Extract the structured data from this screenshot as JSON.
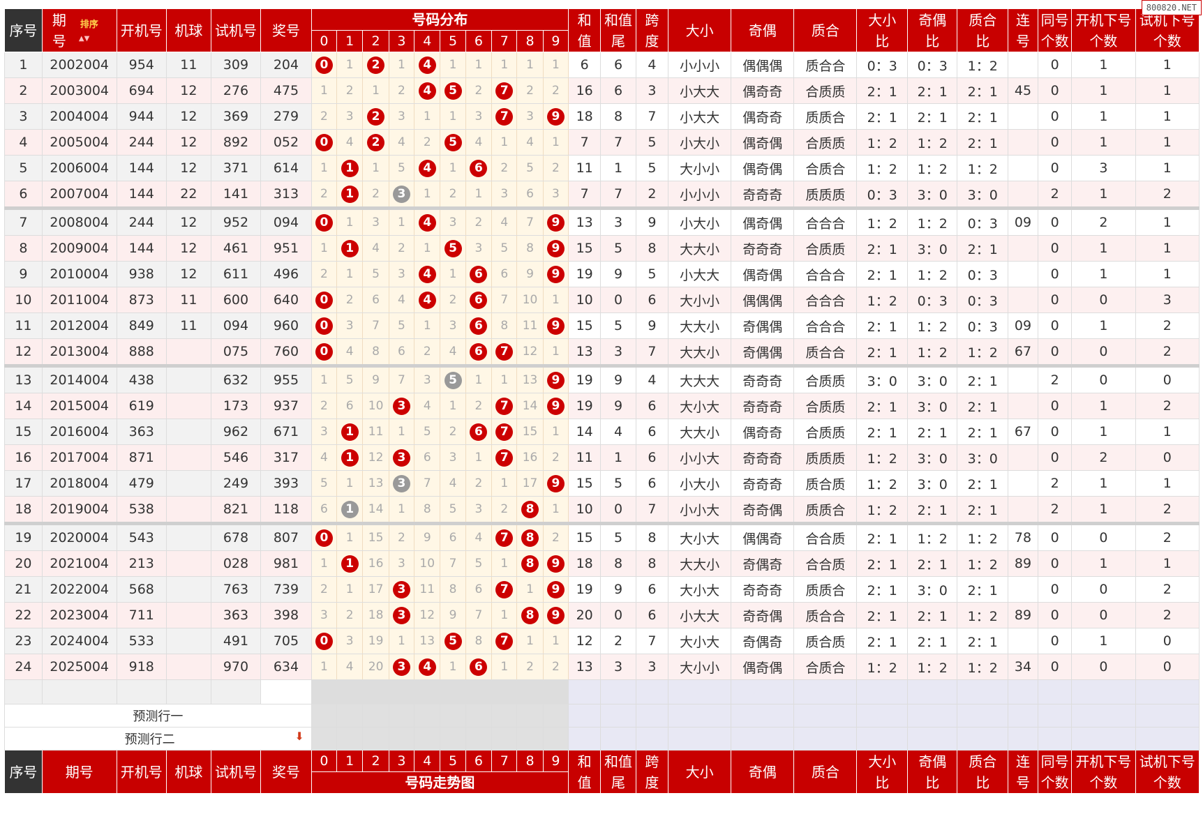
{
  "watermark": "800820.NET",
  "header": {
    "seq": "序号",
    "period_line1": "期",
    "period_line2": "号",
    "sort_label": "排序",
    "open_no": "开机号",
    "machine_ball": "机球",
    "test_no": "试机号",
    "prize_no": "奖号",
    "dist_title": "号码分布",
    "digits": [
      "0",
      "1",
      "2",
      "3",
      "4",
      "5",
      "6",
      "7",
      "8",
      "9"
    ],
    "sum_l1": "和",
    "sum_l2": "值",
    "sumtail_l1": "和值",
    "sumtail_l2": "尾",
    "span_l1": "跨",
    "span_l2": "度",
    "size": "大小",
    "parity": "奇偶",
    "prime": "质合",
    "size_ratio_l1": "大小",
    "size_ratio_l2": "比",
    "parity_ratio_l1": "奇偶",
    "parity_ratio_l2": "比",
    "prime_ratio_l1": "质合",
    "prime_ratio_l2": "比",
    "consec_l1": "连",
    "consec_l2": "号",
    "same_l1": "同号",
    "same_l2": "个数",
    "open_next_l1": "开机下号",
    "open_next_l2": "个数",
    "test_next_l1": "试机下号",
    "test_next_l2": "个数"
  },
  "footer": {
    "period": "期号",
    "trend_title": "号码走势图",
    "predict1": "预测行一",
    "predict2": "预测行二",
    "predict_arrow": "down-arrow-icon"
  },
  "rows": [
    {
      "seq": "1",
      "period": "2002004",
      "open": "954",
      "ball": "11",
      "test": "309",
      "prize": "204",
      "dist": [
        "0",
        "1",
        "2",
        "1",
        "4",
        "1",
        "1",
        "1",
        "1",
        "1"
      ],
      "sum": "6",
      "tail": "6",
      "span": "4",
      "size": "小小小",
      "parity": "偶偶偶",
      "prime": "质合合",
      "sr": "0：3",
      "pr": "0：3",
      "qr": "1：2",
      "consec": "",
      "same": "0",
      "on": "1",
      "tn": "1"
    },
    {
      "seq": "2",
      "period": "2003004",
      "open": "694",
      "ball": "12",
      "test": "276",
      "prize": "475",
      "dist": [
        "1",
        "2",
        "1",
        "2",
        "4",
        "5",
        "2",
        "7",
        "2",
        "2"
      ],
      "sum": "16",
      "tail": "6",
      "span": "3",
      "size": "小大大",
      "parity": "偶奇奇",
      "prime": "合质质",
      "sr": "2：1",
      "pr": "2：1",
      "qr": "2：1",
      "consec": "45",
      "same": "0",
      "on": "1",
      "tn": "1"
    },
    {
      "seq": "3",
      "period": "2004004",
      "open": "944",
      "ball": "12",
      "test": "369",
      "prize": "279",
      "dist": [
        "2",
        "3",
        "2",
        "3",
        "1",
        "1",
        "3",
        "7",
        "3",
        "9"
      ],
      "sum": "18",
      "tail": "8",
      "span": "7",
      "size": "小大大",
      "parity": "偶奇奇",
      "prime": "质质合",
      "sr": "2：1",
      "pr": "2：1",
      "qr": "2：1",
      "consec": "",
      "same": "0",
      "on": "1",
      "tn": "1"
    },
    {
      "seq": "4",
      "period": "2005004",
      "open": "244",
      "ball": "12",
      "test": "892",
      "prize": "052",
      "dist": [
        "0",
        "4",
        "2",
        "4",
        "2",
        "5",
        "4",
        "1",
        "4",
        "1"
      ],
      "sum": "7",
      "tail": "7",
      "span": "5",
      "size": "小大小",
      "parity": "偶奇偶",
      "prime": "合质质",
      "sr": "1：2",
      "pr": "1：2",
      "qr": "2：1",
      "consec": "",
      "same": "0",
      "on": "1",
      "tn": "1"
    },
    {
      "seq": "5",
      "period": "2006004",
      "open": "144",
      "ball": "12",
      "test": "371",
      "prize": "614",
      "dist": [
        "1",
        "1",
        "1",
        "5",
        "4",
        "1",
        "6",
        "2",
        "5",
        "2"
      ],
      "sum": "11",
      "tail": "1",
      "span": "5",
      "size": "大小小",
      "parity": "偶奇偶",
      "prime": "合质合",
      "sr": "1：2",
      "pr": "1：2",
      "qr": "1：2",
      "consec": "",
      "same": "0",
      "on": "3",
      "tn": "1"
    },
    {
      "seq": "6",
      "period": "2007004",
      "open": "144",
      "ball": "22",
      "test": "141",
      "prize": "313",
      "dist": [
        "2",
        "1",
        "2",
        "3",
        "1",
        "2",
        "1",
        "3",
        "6",
        "3"
      ],
      "sum": "7",
      "tail": "7",
      "span": "2",
      "size": "小小小",
      "parity": "奇奇奇",
      "prime": "质质质",
      "sr": "0：3",
      "pr": "3：0",
      "qr": "3：0",
      "consec": "",
      "same": "2",
      "on": "1",
      "tn": "2"
    },
    {
      "seq": "7",
      "period": "2008004",
      "open": "244",
      "ball": "12",
      "test": "952",
      "prize": "094",
      "dist": [
        "0",
        "1",
        "3",
        "1",
        "4",
        "3",
        "2",
        "4",
        "7",
        "9"
      ],
      "sum": "13",
      "tail": "3",
      "span": "9",
      "size": "小大小",
      "parity": "偶奇偶",
      "prime": "合合合",
      "sr": "1：2",
      "pr": "1：2",
      "qr": "0：3",
      "consec": "09",
      "same": "0",
      "on": "2",
      "tn": "1"
    },
    {
      "seq": "8",
      "period": "2009004",
      "open": "144",
      "ball": "12",
      "test": "461",
      "prize": "951",
      "dist": [
        "1",
        "1",
        "4",
        "2",
        "1",
        "5",
        "3",
        "5",
        "8",
        "9"
      ],
      "sum": "15",
      "tail": "5",
      "span": "8",
      "size": "大大小",
      "parity": "奇奇奇",
      "prime": "合质质",
      "sr": "2：1",
      "pr": "3：0",
      "qr": "2：1",
      "consec": "",
      "same": "0",
      "on": "1",
      "tn": "1"
    },
    {
      "seq": "9",
      "period": "2010004",
      "open": "938",
      "ball": "12",
      "test": "611",
      "prize": "496",
      "dist": [
        "2",
        "1",
        "5",
        "3",
        "4",
        "1",
        "6",
        "6",
        "9",
        "9"
      ],
      "sum": "19",
      "tail": "9",
      "span": "5",
      "size": "小大大",
      "parity": "偶奇偶",
      "prime": "合合合",
      "sr": "2：1",
      "pr": "1：2",
      "qr": "0：3",
      "consec": "",
      "same": "0",
      "on": "1",
      "tn": "1"
    },
    {
      "seq": "10",
      "period": "2011004",
      "open": "873",
      "ball": "11",
      "test": "600",
      "prize": "640",
      "dist": [
        "0",
        "2",
        "6",
        "4",
        "4",
        "2",
        "6",
        "7",
        "10",
        "1"
      ],
      "sum": "10",
      "tail": "0",
      "span": "6",
      "size": "大小小",
      "parity": "偶偶偶",
      "prime": "合合合",
      "sr": "1：2",
      "pr": "0：3",
      "qr": "0：3",
      "consec": "",
      "same": "0",
      "on": "0",
      "tn": "3"
    },
    {
      "seq": "11",
      "period": "2012004",
      "open": "849",
      "ball": "11",
      "test": "094",
      "prize": "960",
      "dist": [
        "0",
        "3",
        "7",
        "5",
        "1",
        "3",
        "6",
        "8",
        "11",
        "9"
      ],
      "sum": "15",
      "tail": "5",
      "span": "9",
      "size": "大大小",
      "parity": "奇偶偶",
      "prime": "合合合",
      "sr": "2：1",
      "pr": "1：2",
      "qr": "0：3",
      "consec": "09",
      "same": "0",
      "on": "1",
      "tn": "2"
    },
    {
      "seq": "12",
      "period": "2013004",
      "open": "888",
      "ball": "",
      "test": "075",
      "prize": "760",
      "dist": [
        "0",
        "4",
        "8",
        "6",
        "2",
        "4",
        "6",
        "7",
        "12",
        "1"
      ],
      "sum": "13",
      "tail": "3",
      "span": "7",
      "size": "大大小",
      "parity": "奇偶偶",
      "prime": "质合合",
      "sr": "2：1",
      "pr": "1：2",
      "qr": "1：2",
      "consec": "67",
      "same": "0",
      "on": "0",
      "tn": "2"
    },
    {
      "seq": "13",
      "period": "2014004",
      "open": "438",
      "ball": "",
      "test": "632",
      "prize": "955",
      "dist": [
        "1",
        "5",
        "9",
        "7",
        "3",
        "5",
        "1",
        "1",
        "13",
        "9"
      ],
      "sum": "19",
      "tail": "9",
      "span": "4",
      "size": "大大大",
      "parity": "奇奇奇",
      "prime": "合质质",
      "sr": "3：0",
      "pr": "3：0",
      "qr": "2：1",
      "consec": "",
      "same": "2",
      "on": "0",
      "tn": "0"
    },
    {
      "seq": "14",
      "period": "2015004",
      "open": "619",
      "ball": "",
      "test": "173",
      "prize": "937",
      "dist": [
        "2",
        "6",
        "10",
        "3",
        "4",
        "1",
        "2",
        "7",
        "14",
        "9"
      ],
      "sum": "19",
      "tail": "9",
      "span": "6",
      "size": "大小大",
      "parity": "奇奇奇",
      "prime": "合质质",
      "sr": "2：1",
      "pr": "3：0",
      "qr": "2：1",
      "consec": "",
      "same": "0",
      "on": "1",
      "tn": "2"
    },
    {
      "seq": "15",
      "period": "2016004",
      "open": "363",
      "ball": "",
      "test": "962",
      "prize": "671",
      "dist": [
        "3",
        "1",
        "11",
        "1",
        "5",
        "2",
        "6",
        "7",
        "15",
        "1"
      ],
      "sum": "14",
      "tail": "4",
      "span": "6",
      "size": "大大小",
      "parity": "偶奇奇",
      "prime": "合质质",
      "sr": "2：1",
      "pr": "2：1",
      "qr": "2：1",
      "consec": "67",
      "same": "0",
      "on": "1",
      "tn": "1"
    },
    {
      "seq": "16",
      "period": "2017004",
      "open": "871",
      "ball": "",
      "test": "546",
      "prize": "317",
      "dist": [
        "4",
        "1",
        "12",
        "3",
        "6",
        "3",
        "1",
        "7",
        "16",
        "2"
      ],
      "sum": "11",
      "tail": "1",
      "span": "6",
      "size": "小小大",
      "parity": "奇奇奇",
      "prime": "质质质",
      "sr": "1：2",
      "pr": "3：0",
      "qr": "3：0",
      "consec": "",
      "same": "0",
      "on": "2",
      "tn": "0"
    },
    {
      "seq": "17",
      "period": "2018004",
      "open": "479",
      "ball": "",
      "test": "249",
      "prize": "393",
      "dist": [
        "5",
        "1",
        "13",
        "3",
        "7",
        "4",
        "2",
        "1",
        "17",
        "9"
      ],
      "sum": "15",
      "tail": "5",
      "span": "6",
      "size": "小大小",
      "parity": "奇奇奇",
      "prime": "质合质",
      "sr": "1：2",
      "pr": "3：0",
      "qr": "2：1",
      "consec": "",
      "same": "2",
      "on": "1",
      "tn": "1"
    },
    {
      "seq": "18",
      "period": "2019004",
      "open": "538",
      "ball": "",
      "test": "821",
      "prize": "118",
      "dist": [
        "6",
        "1",
        "14",
        "1",
        "8",
        "5",
        "3",
        "2",
        "8",
        "1"
      ],
      "sum": "10",
      "tail": "0",
      "span": "7",
      "size": "小小大",
      "parity": "奇奇偶",
      "prime": "质质合",
      "sr": "1：2",
      "pr": "2：1",
      "qr": "2：1",
      "consec": "",
      "same": "2",
      "on": "1",
      "tn": "2"
    },
    {
      "seq": "19",
      "period": "2020004",
      "open": "543",
      "ball": "",
      "test": "678",
      "prize": "807",
      "dist": [
        "0",
        "1",
        "15",
        "2",
        "9",
        "6",
        "4",
        "7",
        "8",
        "2"
      ],
      "sum": "15",
      "tail": "5",
      "span": "8",
      "size": "大小大",
      "parity": "偶偶奇",
      "prime": "合合质",
      "sr": "2：1",
      "pr": "1：2",
      "qr": "1：2",
      "consec": "78",
      "same": "0",
      "on": "0",
      "tn": "2"
    },
    {
      "seq": "20",
      "period": "2021004",
      "open": "213",
      "ball": "",
      "test": "028",
      "prize": "981",
      "dist": [
        "1",
        "1",
        "16",
        "3",
        "10",
        "7",
        "5",
        "1",
        "8",
        "9"
      ],
      "sum": "18",
      "tail": "8",
      "span": "8",
      "size": "大大小",
      "parity": "奇偶奇",
      "prime": "合合质",
      "sr": "2：1",
      "pr": "2：1",
      "qr": "1：2",
      "consec": "89",
      "same": "0",
      "on": "1",
      "tn": "1"
    },
    {
      "seq": "21",
      "period": "2022004",
      "open": "568",
      "ball": "",
      "test": "763",
      "prize": "739",
      "dist": [
        "2",
        "1",
        "17",
        "3",
        "11",
        "8",
        "6",
        "7",
        "1",
        "9"
      ],
      "sum": "19",
      "tail": "9",
      "span": "6",
      "size": "大小大",
      "parity": "奇奇奇",
      "prime": "质质合",
      "sr": "2：1",
      "pr": "3：0",
      "qr": "2：1",
      "consec": "",
      "same": "0",
      "on": "0",
      "tn": "2"
    },
    {
      "seq": "22",
      "period": "2023004",
      "open": "711",
      "ball": "",
      "test": "363",
      "prize": "398",
      "dist": [
        "3",
        "2",
        "18",
        "3",
        "12",
        "9",
        "7",
        "1",
        "8",
        "9"
      ],
      "sum": "20",
      "tail": "0",
      "span": "6",
      "size": "小大大",
      "parity": "奇奇偶",
      "prime": "质合合",
      "sr": "2：1",
      "pr": "2：1",
      "qr": "1：2",
      "consec": "89",
      "same": "0",
      "on": "0",
      "tn": "2"
    },
    {
      "seq": "23",
      "period": "2024004",
      "open": "533",
      "ball": "",
      "test": "491",
      "prize": "705",
      "dist": [
        "0",
        "3",
        "19",
        "1",
        "13",
        "5",
        "8",
        "7",
        "1",
        "1"
      ],
      "sum": "12",
      "tail": "2",
      "span": "7",
      "size": "大小大",
      "parity": "奇偶奇",
      "prime": "质合质",
      "sr": "2：1",
      "pr": "2：1",
      "qr": "2：1",
      "consec": "",
      "same": "0",
      "on": "1",
      "tn": "0"
    },
    {
      "seq": "24",
      "period": "2025004",
      "open": "918",
      "ball": "",
      "test": "970",
      "prize": "634",
      "dist": [
        "1",
        "4",
        "20",
        "3",
        "4",
        "1",
        "6",
        "1",
        "2",
        "2"
      ],
      "sum": "13",
      "tail": "3",
      "span": "3",
      "size": "大小小",
      "parity": "偶奇偶",
      "prime": "合质合",
      "sr": "1：2",
      "pr": "1：2",
      "qr": "1：2",
      "consec": "34",
      "same": "0",
      "on": "0",
      "tn": "0"
    }
  ],
  "hits": [
    [
      0,
      2,
      4
    ],
    [
      4,
      5,
      7
    ],
    [
      2,
      7,
      9
    ],
    [
      0,
      2,
      5
    ],
    [
      1,
      4,
      6
    ],
    [
      1,
      3
    ],
    [
      0,
      4,
      9
    ],
    [
      1,
      5,
      9
    ],
    [
      4,
      6,
      9
    ],
    [
      0,
      4,
      6
    ],
    [
      0,
      6,
      9
    ],
    [
      0,
      6,
      7
    ],
    [
      5,
      9
    ],
    [
      3,
      7,
      9
    ],
    [
      1,
      6,
      7
    ],
    [
      1,
      3,
      7
    ],
    [
      3,
      9
    ],
    [
      1,
      8
    ],
    [
      0,
      7,
      8
    ],
    [
      1,
      8,
      9
    ],
    [
      3,
      7,
      9
    ],
    [
      3,
      8,
      9
    ],
    [
      0,
      5,
      7
    ],
    [
      3,
      4,
      6
    ]
  ],
  "gray_hits": [
    [],
    [],
    [],
    [],
    [],
    [
      3
    ],
    [],
    [],
    [],
    [],
    [],
    [],
    [
      5
    ],
    [],
    [],
    [],
    [
      3
    ],
    [
      1
    ],
    [],
    [],
    [],
    [],
    [],
    []
  ],
  "colors": {
    "header_red": "#c80000",
    "ball_red": "#cc0000",
    "ball_gray": "#999999"
  }
}
